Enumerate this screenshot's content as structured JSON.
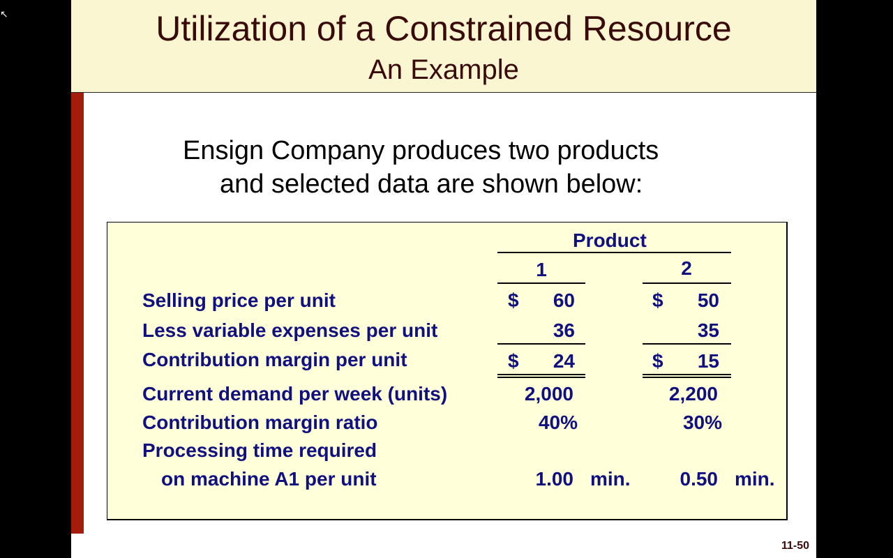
{
  "header": {
    "title": "Utilization of a Constrained Resource",
    "subtitle": "An Example"
  },
  "intro": {
    "line1": "Ensign Company produces two products",
    "line2": "and selected data are shown below:"
  },
  "table": {
    "group_header": "Product",
    "columns": [
      "1",
      "2"
    ],
    "rows": [
      {
        "label": "Selling price per unit",
        "c1_sym": "$",
        "c1": "60",
        "c2_sym": "$",
        "c2": "50"
      },
      {
        "label": "Less variable expenses per unit",
        "c1": "36",
        "c2": "35"
      },
      {
        "label": "Contribution margin per unit",
        "c1_sym": "$",
        "c1": "24",
        "c2_sym": "$",
        "c2": "15"
      },
      {
        "label": "Current demand per week (units)",
        "c1": "2,000",
        "c2": "2,200"
      },
      {
        "label": "Contribution margin ratio",
        "c1": "40%",
        "c2": "30%"
      },
      {
        "label": "Processing time required",
        "label2": "on machine A1 per unit",
        "c1": "1.00",
        "c1_unit": "min.",
        "c2": "0.50",
        "c2_unit": "min."
      }
    ]
  },
  "footer": {
    "page_number": "11-50"
  },
  "colors": {
    "header_bg": "#FAF6D2",
    "accent_bar": "#A31C0C",
    "table_bg": "#FFFFDA",
    "table_text": "#10107F",
    "title_text": "#3a0a0a"
  }
}
